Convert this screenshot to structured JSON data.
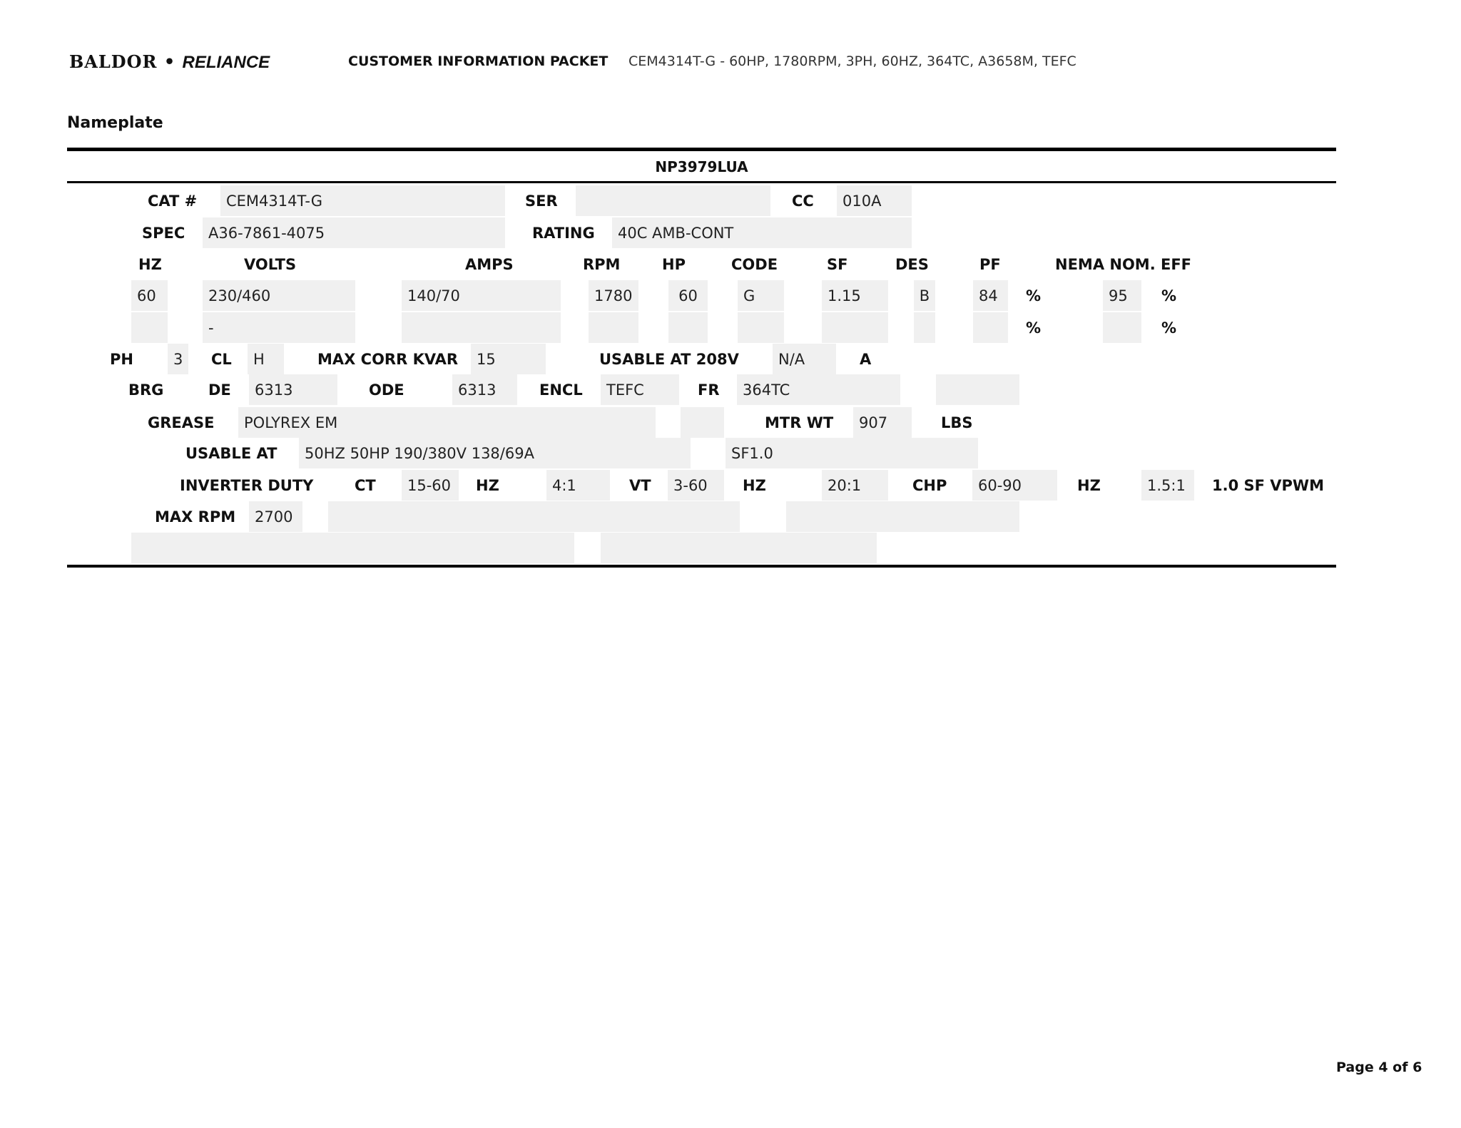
{
  "header": {
    "logo_left": "BALDOR",
    "logo_sep": "•",
    "logo_right": "RELIANCE",
    "packet_title": "CUSTOMER INFORMATION PACKET",
    "product_summary": "CEM4314T-G - 60HP, 1780RPM, 3PH, 60HZ, 364TC, A3658M, TEFC"
  },
  "section_title": "Nameplate",
  "nameplate": {
    "id": "NP3979LUA",
    "cat_label": "CAT #",
    "cat": "CEM4314T-G",
    "ser_label": "SER",
    "ser": "",
    "cc_label": "CC",
    "cc": "010A",
    "spec_label": "SPEC",
    "spec": "A36-7861-4075",
    "rating_label": "RATING",
    "rating": "40C AMB-CONT",
    "headers": {
      "hz": "HZ",
      "volts": "VOLTS",
      "amps": "AMPS",
      "rpm": "RPM",
      "hp": "HP",
      "code": "CODE",
      "sf": "SF",
      "des": "DES",
      "pf": "PF",
      "eff": "NEMA NOM. EFF"
    },
    "row1": {
      "hz": "60",
      "volts": "230/460",
      "amps": "140/70",
      "rpm": "1780",
      "hp": "60",
      "code": "G",
      "sf": "1.15",
      "des": "B",
      "pf": "84",
      "pf_unit": "%",
      "eff": "95",
      "eff_unit": "%"
    },
    "row2": {
      "hz": "",
      "volts": "-",
      "amps": "",
      "rpm": "",
      "hp": "",
      "code": "",
      "sf": "",
      "des": "",
      "pf": "",
      "pf_unit": "%",
      "eff": "",
      "eff_unit": "%"
    },
    "ph_label": "PH",
    "ph": "3",
    "cl_label": "CL",
    "cl": "H",
    "kvar_label": "MAX CORR KVAR",
    "kvar": "15",
    "usable208_label": "USABLE AT 208V",
    "usable208": "N/A",
    "usable208_unit": "A",
    "brg_label": "BRG",
    "de_label": "DE",
    "de": "6313",
    "ode_label": "ODE",
    "ode": "6313",
    "encl_label": "ENCL",
    "encl": "TEFC",
    "fr_label": "FR",
    "fr": "364TC",
    "grease_label": "GREASE",
    "grease": "POLYREX EM",
    "mtrwt_label": "MTR WT",
    "mtrwt": "907",
    "mtrwt_unit": "LBS",
    "usable_label": "USABLE AT",
    "usable": "50HZ 50HP 190/380V 138/69A",
    "usable_sf": "SF1.0",
    "inverter_label": "INVERTER DUTY",
    "ct_label": "CT",
    "ct": "15-60",
    "ct_hz": "HZ",
    "ct_ratio": "4:1",
    "vt_label": "VT",
    "vt": "3-60",
    "vt_hz": "HZ",
    "vt_ratio": "20:1",
    "chp_label": "CHP",
    "chp": "60-90",
    "chp_hz": "HZ",
    "chp_ratio": "1.5:1",
    "vpwm": "1.0 SF VPWM",
    "maxrpm_label": "MAX RPM",
    "maxrpm": "2700"
  },
  "footer": {
    "page": "Page 4 of 6"
  }
}
